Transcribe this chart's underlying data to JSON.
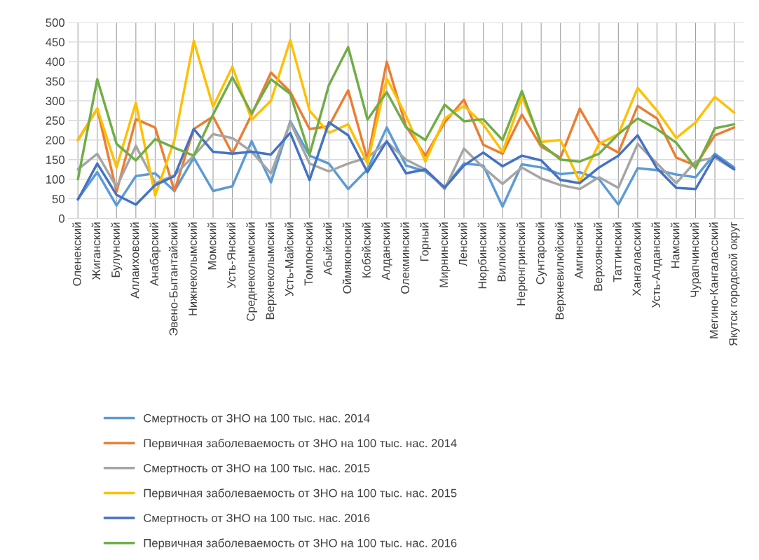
{
  "chart_data": {
    "type": "line",
    "categories": [
      "Оленекский",
      "Жиганский",
      "Булунский",
      "Аллаиховский",
      "Анабарский",
      "Эвено-Бытантайский",
      "Нижнеколымский",
      "Момский",
      "Усть-Янский",
      "Среднеколымский",
      "Верхнеколымский",
      "Усть-Майский",
      "Томпонский",
      "Абыйский",
      "Оймяконский",
      "Кобяйский",
      "Алданский",
      "Олекминский",
      "Горный",
      "Мирнинский",
      "Ленский",
      "Нюрбинский",
      "Вилюйский",
      "Нерюнгринский",
      "Сунтарский",
      "Верхневилюйский",
      "Амгинский",
      "Верхоянский",
      "Таттинский",
      "Хангаласский",
      "Усть-Алданский",
      "Намский",
      "Чурапчинский",
      "Мегино-Кангаласский",
      "Якутск городской округ"
    ],
    "series": [
      {
        "name": "Смертность от ЗНО на 100 тыс. нас. 2014",
        "color": "#5b9bd5",
        "values": [
          50,
          118,
          33,
          108,
          115,
          70,
          155,
          70,
          82,
          197,
          92,
          248,
          160,
          140,
          75,
          125,
          232,
          135,
          120,
          80,
          140,
          135,
          30,
          138,
          130,
          113,
          118,
          100,
          35,
          128,
          123,
          112,
          105,
          165,
          130
        ]
      },
      {
        "name": "Первичная заболеваемость от ЗНО на 100 тыс. нас. 2014",
        "color": "#ed7d31",
        "values": [
          200,
          280,
          68,
          253,
          232,
          70,
          228,
          260,
          165,
          265,
          372,
          323,
          228,
          235,
          327,
          150,
          400,
          235,
          160,
          245,
          303,
          188,
          165,
          265,
          183,
          155,
          280,
          195,
          168,
          287,
          255,
          155,
          135,
          212,
          232
        ]
      },
      {
        "name": "Смертность от ЗНО на 100 тыс. нас. 2015",
        "color": "#a5a5a5",
        "values": [
          125,
          165,
          80,
          185,
          90,
          110,
          160,
          215,
          205,
          170,
          115,
          245,
          140,
          120,
          140,
          155,
          195,
          150,
          125,
          75,
          178,
          130,
          88,
          130,
          102,
          85,
          75,
          105,
          78,
          190,
          140,
          90,
          145,
          155,
          125
        ]
      },
      {
        "name": "Первичная заболеваемость от ЗНО на 100 тыс. нас. 2015",
        "color": "#ffc000",
        "values": [
          200,
          280,
          130,
          295,
          58,
          200,
          453,
          285,
          387,
          252,
          300,
          455,
          275,
          218,
          240,
          140,
          357,
          262,
          145,
          255,
          287,
          240,
          170,
          310,
          195,
          200,
          93,
          190,
          215,
          333,
          275,
          205,
          245,
          310,
          270
        ]
      },
      {
        "name": "Смертность от ЗНО на 100 тыс. нас. 2016",
        "color": "#4472c4",
        "values": [
          48,
          140,
          60,
          35,
          85,
          108,
          228,
          170,
          165,
          170,
          163,
          218,
          98,
          245,
          212,
          118,
          197,
          115,
          125,
          78,
          135,
          168,
          133,
          160,
          148,
          98,
          90,
          130,
          160,
          212,
          128,
          78,
          75,
          160,
          125
        ]
      },
      {
        "name": "Первичная заболеваемость от ЗНО на 100 тыс. нас. 2016",
        "color": "#70ad47",
        "values": [
          100,
          355,
          190,
          148,
          202,
          180,
          160,
          265,
          360,
          268,
          355,
          318,
          163,
          340,
          437,
          252,
          322,
          232,
          200,
          290,
          248,
          253,
          200,
          325,
          190,
          150,
          145,
          165,
          215,
          255,
          228,
          193,
          128,
          230,
          240
        ]
      }
    ],
    "ylim": [
      0,
      500
    ],
    "yticks": [
      0,
      50,
      100,
      150,
      200,
      250,
      300,
      350,
      400,
      450,
      500
    ],
    "grid": true,
    "legend": "bottom",
    "marker": "none",
    "line_style": "solid"
  }
}
